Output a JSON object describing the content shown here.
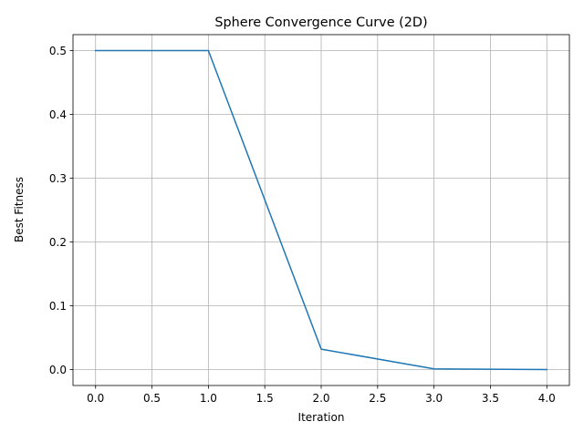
{
  "chart_data": {
    "type": "line",
    "title": "Sphere Convergence Curve (2D)",
    "xlabel": "Iteration",
    "ylabel": "Best Fitness",
    "x": [
      0,
      1,
      2,
      3,
      4
    ],
    "series": [
      {
        "values": [
          0.5,
          0.5,
          0.032,
          0.001,
          0.0
        ],
        "color": "#1f77b4"
      }
    ],
    "xlim": [
      -0.2,
      4.2
    ],
    "ylim": [
      -0.025,
      0.525
    ],
    "xticks": [
      0.0,
      0.5,
      1.0,
      1.5,
      2.0,
      2.5,
      3.0,
      3.5,
      4.0
    ],
    "xtick_labels": [
      "0.0",
      "0.5",
      "1.0",
      "1.5",
      "2.0",
      "2.5",
      "3.0",
      "3.5",
      "4.0"
    ],
    "yticks": [
      0.0,
      0.1,
      0.2,
      0.3,
      0.4,
      0.5
    ],
    "ytick_labels": [
      "0.0",
      "0.1",
      "0.2",
      "0.3",
      "0.4",
      "0.5"
    ],
    "grid": true,
    "grid_color": "#b0b0b0"
  }
}
